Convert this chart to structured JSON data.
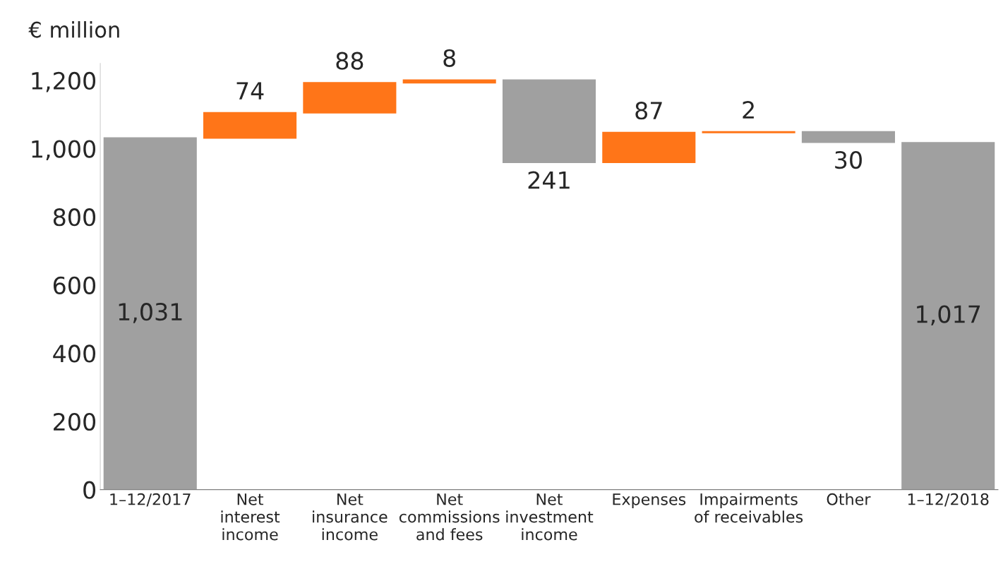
{
  "chart_data": {
    "type": "bar",
    "ylabel": "€ million",
    "categories": [
      "1–12/2017",
      "Net\ninterest\nincome",
      "Net\ninsurance\nincome",
      "Net\ncommissions\nand fees",
      "Net\ninvestment\nincome",
      "Expenses",
      "Impairments\nof receivables",
      "Other",
      "1–12/2018"
    ],
    "values": [
      1031,
      74,
      88,
      8,
      -241,
      87,
      2,
      -30,
      1017
    ],
    "base": [
      0,
      1031,
      1105,
      1193,
      1201,
      960,
      1047,
      1049,
      0
    ],
    "colors": [
      "#a0a0a0",
      "#ff7518",
      "#ff7518",
      "#ff7518",
      "#a0a0a0",
      "#ff7518",
      "#ff7518",
      "#a0a0a0",
      "#a0a0a0"
    ],
    "value_labels": [
      "1,031",
      "74",
      "88",
      "8",
      "241",
      "87",
      "2",
      "30",
      "1,017"
    ],
    "ylim": [
      0,
      1250
    ],
    "yticks": [
      0,
      {
        "value": 200,
        "label": "200"
      },
      {
        "value": 400,
        "label": "400"
      },
      {
        "value": 600,
        "label": "600"
      },
      {
        "value": 800,
        "label": "800"
      },
      {
        "value": 1000,
        "label": "1,000"
      },
      {
        "value": 1200,
        "label": "1,200"
      }
    ],
    "grid": false,
    "legend": false
  }
}
